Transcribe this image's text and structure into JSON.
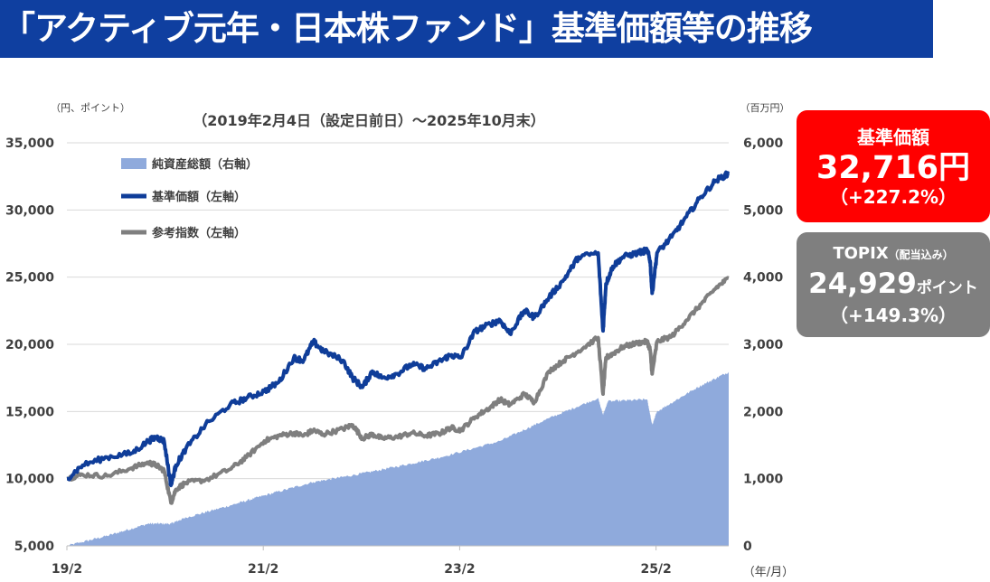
{
  "title": "「アクティブ元年・日本株ファンド」基準価額等の推移",
  "badges": {
    "nav": {
      "label": "基準価額",
      "value": "32,716円",
      "change": "（+227.2%）",
      "color": "#ff0000"
    },
    "topix": {
      "label": "TOPIX",
      "label_note": "（配当込み）",
      "value": "24,929",
      "unit": "ポイント",
      "change": "（+149.3%）",
      "color": "#7f7f7f"
    }
  },
  "chart_data": {
    "type": "line",
    "subtitle": "（2019年2月4日（設定日前日）～2025年10月末）",
    "left_axis_unit": "（円、ポイント）",
    "right_axis_unit": "（百万円）",
    "x_axis_unit": "（年/月）",
    "left_axis": {
      "min": 5000,
      "max": 35000,
      "ticks": [
        "35,000",
        "30,000",
        "25,000",
        "20,000",
        "15,000",
        "10,000",
        "5,000"
      ]
    },
    "right_axis": {
      "min": 0,
      "max": 6000,
      "ticks": [
        "6,000",
        "5,000",
        "4,000",
        "3,000",
        "2,000",
        "1,000",
        "0"
      ]
    },
    "x_ticks": [
      "19/2",
      "21/2",
      "23/2",
      "25/2"
    ],
    "x_range": [
      2019.09,
      2025.83
    ],
    "legend": [
      {
        "label": "純資産総額（右軸）",
        "color": "#8faadc",
        "kind": "area"
      },
      {
        "label": "基準価額（左軸）",
        "color": "#0f3d99",
        "kind": "line"
      },
      {
        "label": "参考指数（左軸）",
        "color": "#7f7f7f",
        "kind": "line"
      }
    ],
    "series": [
      {
        "name": "基準価額（左軸）",
        "axis": "left",
        "color": "#0f3d99",
        "x": [
          2019.09,
          2019.25,
          2019.5,
          2019.75,
          2019.92,
          2020.0,
          2020.08,
          2020.15,
          2020.2,
          2020.3,
          2020.5,
          2020.75,
          2020.92,
          2021.1,
          2021.25,
          2021.4,
          2021.5,
          2021.6,
          2021.7,
          2021.9,
          2022.0,
          2022.1,
          2022.2,
          2022.3,
          2022.45,
          2022.6,
          2022.75,
          2022.9,
          2023.0,
          2023.1,
          2023.25,
          2023.4,
          2023.5,
          2023.6,
          2023.75,
          2023.85,
          2024.0,
          2024.15,
          2024.3,
          2024.5,
          2024.55,
          2024.58,
          2024.65,
          2024.75,
          2024.9,
          2025.0,
          2025.03,
          2025.05,
          2025.1,
          2025.25,
          2025.4,
          2025.55,
          2025.7,
          2025.83
        ],
        "values": [
          10000,
          11000,
          11600,
          11900,
          12800,
          13100,
          12800,
          9500,
          11000,
          12200,
          14000,
          15500,
          16000,
          16500,
          17200,
          19000,
          18800,
          20200,
          19500,
          18800,
          17500,
          16800,
          18000,
          17500,
          17800,
          18500,
          18200,
          18800,
          19200,
          19000,
          21000,
          21500,
          21800,
          20800,
          22500,
          22000,
          23500,
          24800,
          26500,
          26800,
          21000,
          24500,
          25800,
          26500,
          26800,
          27000,
          26200,
          23800,
          26800,
          28000,
          29500,
          31000,
          32200,
          32716
        ]
      },
      {
        "name": "参考指数（左軸）",
        "axis": "left",
        "color": "#7f7f7f",
        "x": [
          2019.09,
          2019.25,
          2019.5,
          2019.75,
          2019.92,
          2020.0,
          2020.08,
          2020.15,
          2020.2,
          2020.3,
          2020.5,
          2020.75,
          2020.92,
          2021.1,
          2021.25,
          2021.4,
          2021.5,
          2021.6,
          2021.7,
          2021.9,
          2022.0,
          2022.1,
          2022.2,
          2022.3,
          2022.45,
          2022.6,
          2022.75,
          2022.9,
          2023.0,
          2023.1,
          2023.25,
          2023.4,
          2023.5,
          2023.6,
          2023.75,
          2023.85,
          2024.0,
          2024.15,
          2024.3,
          2024.5,
          2024.55,
          2024.58,
          2024.65,
          2024.75,
          2024.9,
          2025.0,
          2025.03,
          2025.05,
          2025.1,
          2025.25,
          2025.4,
          2025.55,
          2025.7,
          2025.83
        ],
        "values": [
          10000,
          10300,
          10200,
          10800,
          11200,
          11000,
          10600,
          8200,
          9200,
          9700,
          9900,
          10700,
          11600,
          12800,
          13200,
          13400,
          13200,
          13600,
          13300,
          13700,
          14000,
          13000,
          13300,
          13000,
          13100,
          13400,
          13200,
          13400,
          13800,
          13600,
          14600,
          15300,
          15900,
          15500,
          16300,
          15700,
          18000,
          18800,
          19500,
          20500,
          16300,
          19000,
          19300,
          19800,
          20100,
          20200,
          19600,
          17800,
          20200,
          20600,
          21800,
          23000,
          24200,
          24929
        ]
      },
      {
        "name": "純資産総額（右軸）",
        "axis": "right",
        "color": "#8faadc",
        "x": [
          2019.09,
          2019.5,
          2019.92,
          2020.15,
          2020.3,
          2020.75,
          2021.1,
          2021.6,
          2022.0,
          2022.45,
          2022.9,
          2023.5,
          2024.0,
          2024.5,
          2024.55,
          2024.6,
          2025.0,
          2025.05,
          2025.1,
          2025.5,
          2025.83
        ],
        "values": [
          0,
          150,
          330,
          330,
          420,
          600,
          750,
          950,
          1050,
          1180,
          1320,
          1560,
          1900,
          2200,
          1950,
          2150,
          2180,
          1800,
          2000,
          2350,
          2590
        ]
      }
    ]
  }
}
